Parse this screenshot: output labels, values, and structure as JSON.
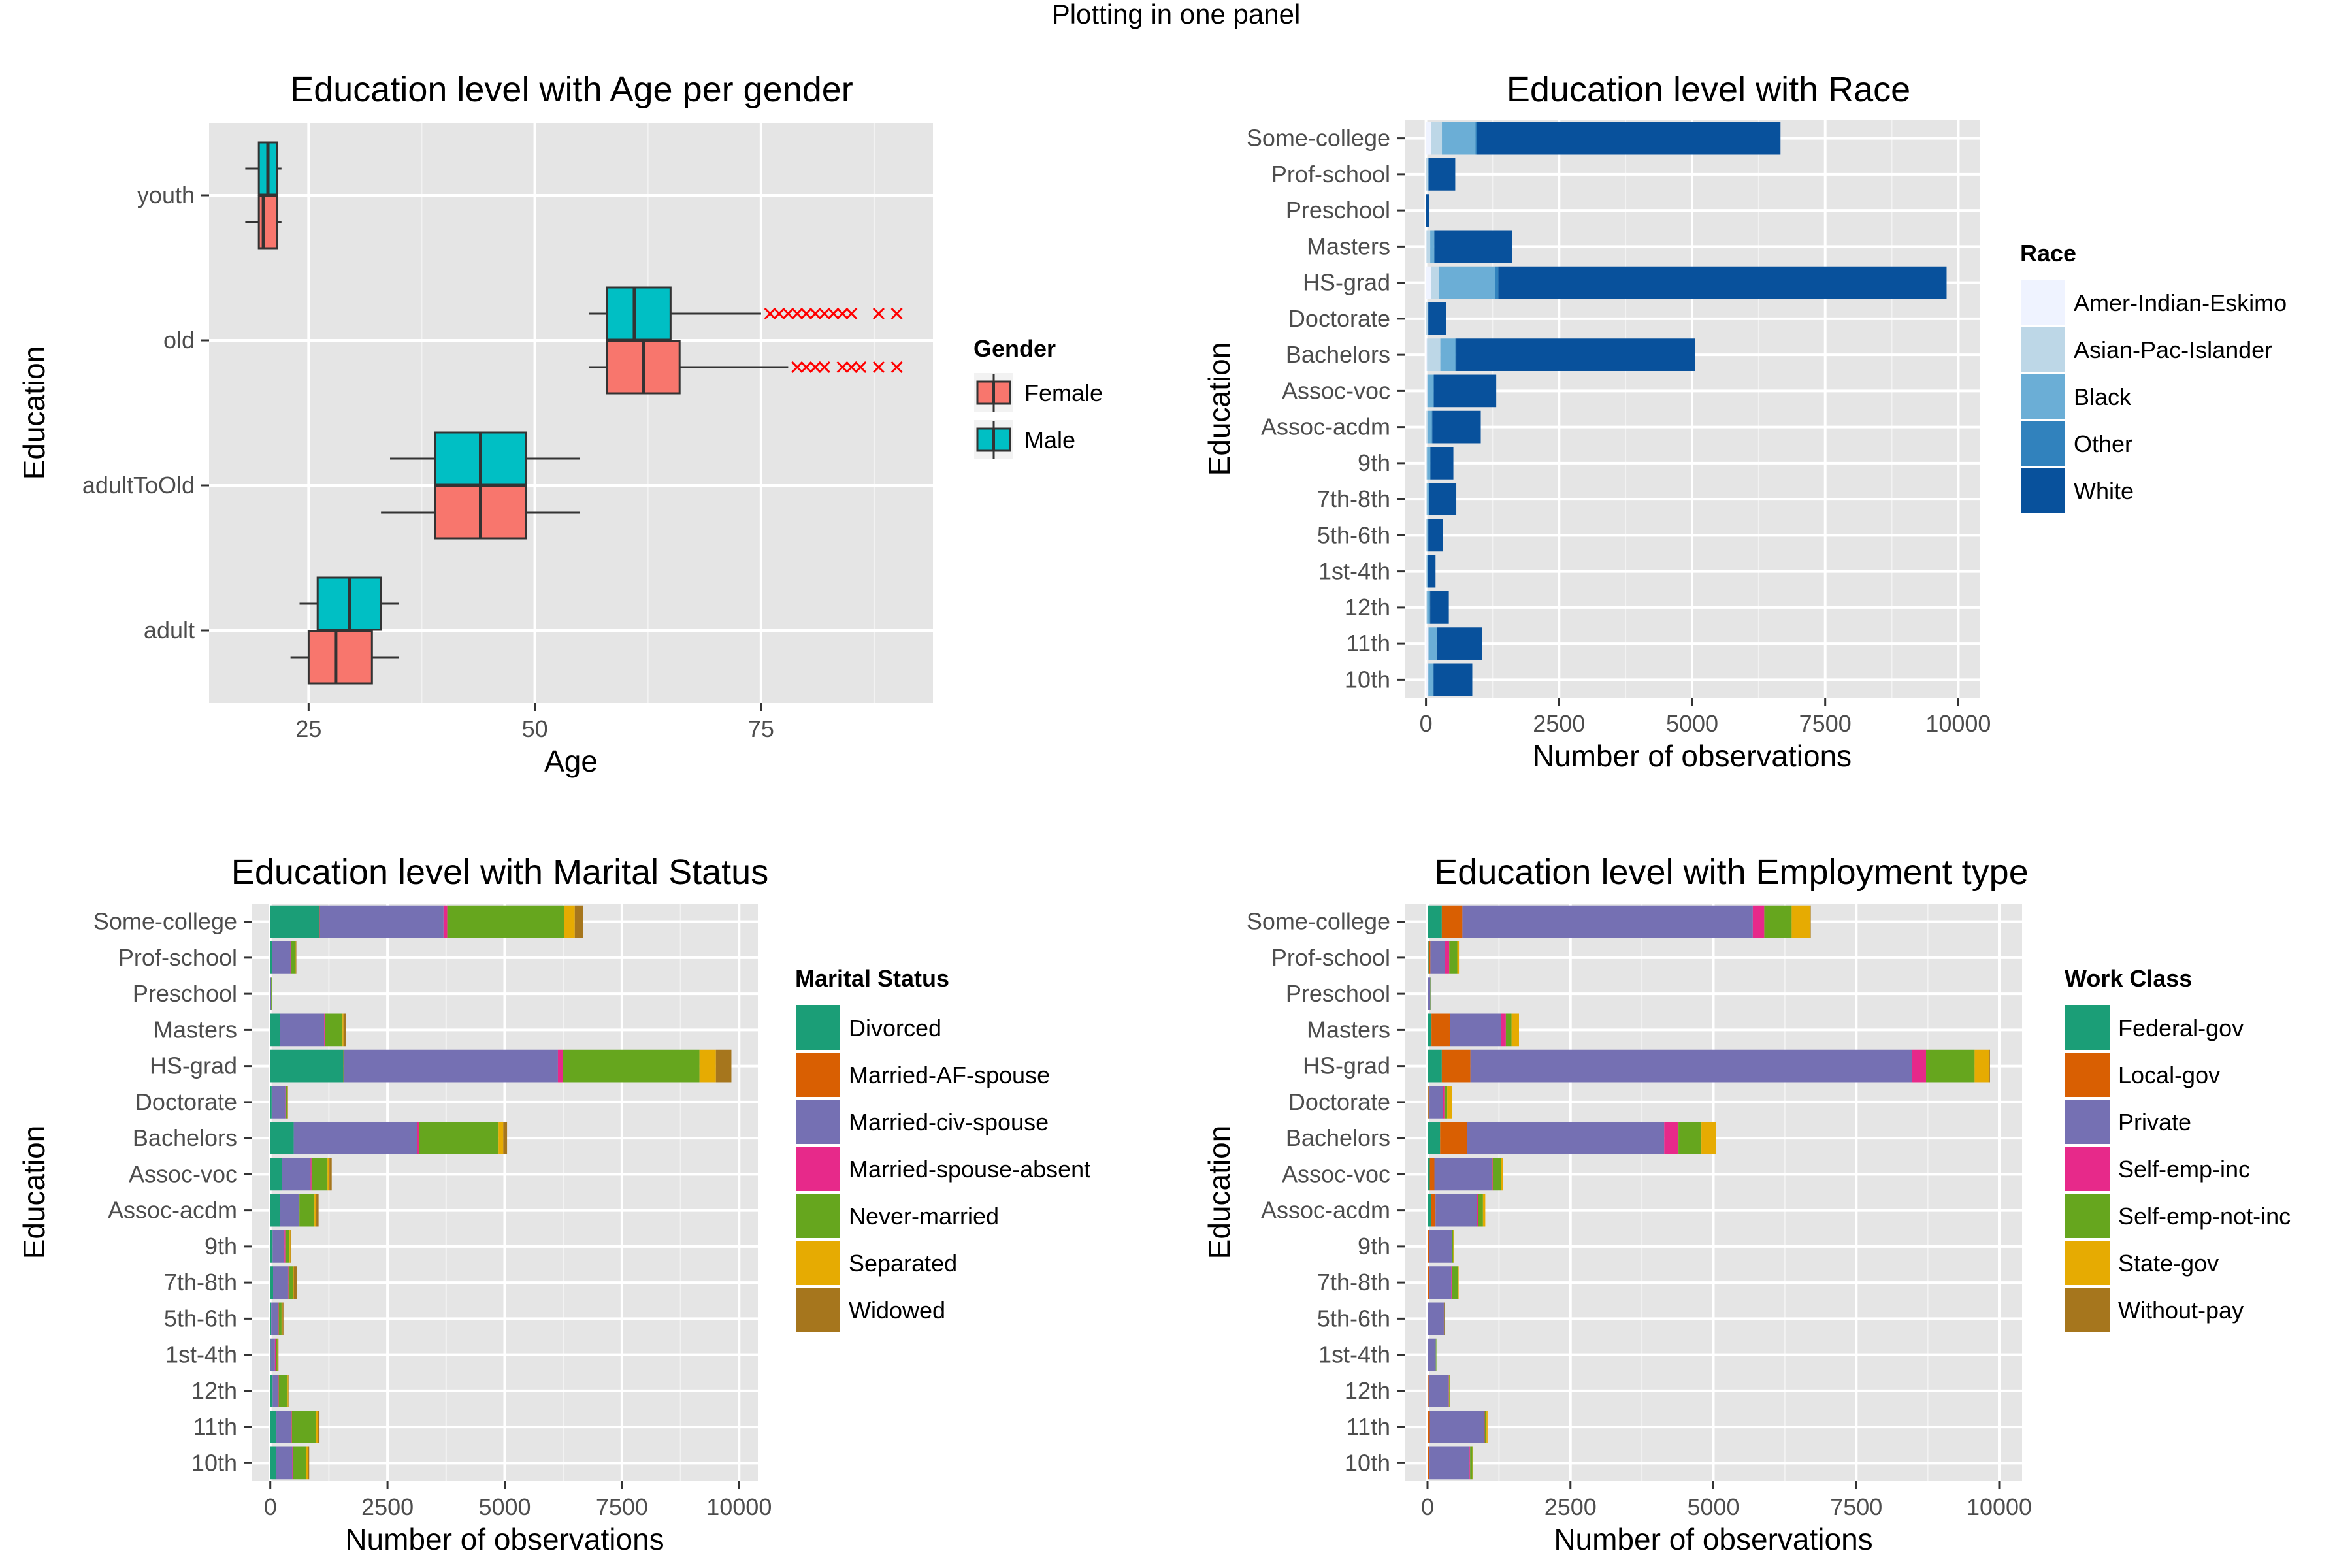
{
  "page_title": "Plotting in one panel",
  "colors": {
    "panel_bg": "#e5e5e5",
    "grid_major": "#ffffff",
    "grid_minor": "#f2f2f2",
    "outlier": "#ff0000",
    "box_female": "#f8766d",
    "box_male": "#00bfc4"
  },
  "chart_data": [
    {
      "type": "boxplot",
      "title": "Education level with Age per gender",
      "xlabel": "Age",
      "ylabel": "Education",
      "xlim": [
        14,
        94
      ],
      "xticks": [
        25,
        50,
        75
      ],
      "categories": [
        "adult",
        "adultToOld",
        "old",
        "youth"
      ],
      "legend": {
        "title": "Gender",
        "position": "right",
        "entries": [
          "Female",
          "Male"
        ],
        "colors": [
          "#f8766d",
          "#00bfc4"
        ]
      },
      "series": [
        {
          "name": "Female",
          "color": "#f8766d",
          "boxes": [
            {
              "category": "adult",
              "min": 23,
              "q1": 25,
              "median": 28,
              "q3": 32,
              "max": 35,
              "outliers": []
            },
            {
              "category": "adultToOld",
              "min": 33,
              "q1": 39,
              "median": 44,
              "q3": 49,
              "max": 55,
              "outliers": []
            },
            {
              "category": "old",
              "min": 56,
              "q1": 58,
              "median": 62,
              "q3": 66,
              "max": 78,
              "outliers": [
                79,
                80,
                81,
                82,
                84,
                85,
                86,
                88,
                90
              ]
            },
            {
              "category": "youth",
              "min": 18,
              "q1": 19.5,
              "median": 20,
              "q3": 21.5,
              "max": 22,
              "outliers": []
            }
          ]
        },
        {
          "name": "Male",
          "color": "#00bfc4",
          "boxes": [
            {
              "category": "adult",
              "min": 24,
              "q1": 26,
              "median": 29.5,
              "q3": 33,
              "max": 35,
              "outliers": []
            },
            {
              "category": "adultToOld",
              "min": 34,
              "q1": 39,
              "median": 44,
              "q3": 49,
              "max": 55,
              "outliers": []
            },
            {
              "category": "old",
              "min": 56,
              "q1": 58,
              "median": 61,
              "q3": 65,
              "max": 75,
              "outliers": [
                76,
                77,
                78,
                79,
                80,
                81,
                82,
                83,
                84,
                85,
                88,
                90
              ]
            },
            {
              "category": "youth",
              "min": 18,
              "q1": 19.5,
              "median": 20.5,
              "q3": 21.5,
              "max": 22,
              "outliers": []
            }
          ]
        }
      ]
    },
    {
      "type": "bar",
      "orientation": "horizontal",
      "stacked": true,
      "title": "Education level with Race",
      "xlabel": "Number of observations",
      "ylabel": "Education",
      "xlim": [
        -400,
        10400
      ],
      "xticks": [
        0,
        2500,
        5000,
        7500,
        10000
      ],
      "categories": [
        "10th",
        "11th",
        "12th",
        "1st-4th",
        "5th-6th",
        "7th-8th",
        "9th",
        "Assoc-acdm",
        "Assoc-voc",
        "Bachelors",
        "Doctorate",
        "HS-grad",
        "Masters",
        "Preschool",
        "Prof-school",
        "Some-college"
      ],
      "legend": {
        "title": "Race",
        "position": "right"
      },
      "series": [
        {
          "name": "Amer-Indian-Eskimo",
          "color": "#eff3ff",
          "values": [
            30,
            30,
            10,
            5,
            5,
            10,
            10,
            10,
            20,
            20,
            5,
            100,
            10,
            0,
            5,
            100
          ]
        },
        {
          "name": "Asian-Pac-Islander",
          "color": "#bdd7e7",
          "values": [
            15,
            20,
            10,
            15,
            15,
            10,
            10,
            20,
            20,
            250,
            25,
            150,
            70,
            5,
            25,
            200
          ]
        },
        {
          "name": "Black",
          "color": "#6baed6",
          "values": [
            90,
            150,
            50,
            15,
            20,
            40,
            60,
            80,
            100,
            280,
            10,
            1050,
            70,
            0,
            15,
            630
          ]
        },
        {
          "name": "Other",
          "color": "#3182bd",
          "values": [
            10,
            10,
            10,
            5,
            5,
            5,
            5,
            10,
            10,
            20,
            5,
            60,
            10,
            0,
            5,
            20
          ]
        },
        {
          "name": "White",
          "color": "#08519c",
          "values": [
            725,
            840,
            350,
            140,
            270,
            505,
            430,
            910,
            1170,
            4480,
            330,
            8420,
            1460,
            50,
            500,
            5710
          ]
        }
      ]
    },
    {
      "type": "bar",
      "orientation": "horizontal",
      "stacked": true,
      "title": "Education level with Marital Status",
      "xlabel": "Number of observations",
      "ylabel": "Education",
      "xlim": [
        -400,
        10400
      ],
      "xticks": [
        0,
        2500,
        5000,
        7500,
        10000
      ],
      "categories": [
        "10th",
        "11th",
        "12th",
        "1st-4th",
        "5th-6th",
        "7th-8th",
        "9th",
        "Assoc-acdm",
        "Assoc-voc",
        "Bachelors",
        "Doctorate",
        "HS-grad",
        "Masters",
        "Preschool",
        "Prof-school",
        "Some-college"
      ],
      "legend": {
        "title": "Marital Status",
        "position": "right"
      },
      "series": [
        {
          "name": "Divorced",
          "color": "#1b9e77",
          "values": [
            120,
            130,
            50,
            10,
            20,
            60,
            50,
            200,
            250,
            500,
            30,
            1560,
            200,
            0,
            40,
            1050
          ]
        },
        {
          "name": "Married-AF-spouse",
          "color": "#d95f02",
          "values": [
            0,
            0,
            0,
            0,
            0,
            0,
            0,
            0,
            0,
            0,
            0,
            5,
            0,
            0,
            0,
            5
          ]
        },
        {
          "name": "Married-civ-spouse",
          "color": "#7570b3",
          "values": [
            350,
            310,
            120,
            90,
            140,
            320,
            250,
            410,
            610,
            2630,
            290,
            4570,
            950,
            20,
            390,
            2640
          ]
        },
        {
          "name": "Married-spouse-absent",
          "color": "#e7298a",
          "values": [
            20,
            20,
            10,
            20,
            20,
            10,
            20,
            10,
            20,
            50,
            5,
            100,
            20,
            0,
            10,
            80
          ]
        },
        {
          "name": "Never-married",
          "color": "#66a61e",
          "values": [
            280,
            520,
            190,
            30,
            60,
            90,
            90,
            320,
            340,
            1690,
            40,
            2920,
            370,
            20,
            100,
            2500
          ]
        },
        {
          "name": "Separated",
          "color": "#e6ab02",
          "values": [
            30,
            40,
            15,
            5,
            20,
            20,
            20,
            40,
            40,
            100,
            5,
            350,
            20,
            0,
            5,
            220
          ]
        },
        {
          "name": "Widowed",
          "color": "#a6761d",
          "values": [
            30,
            30,
            5,
            20,
            20,
            70,
            20,
            50,
            50,
            80,
            5,
            330,
            50,
            0,
            10,
            180
          ]
        }
      ]
    },
    {
      "type": "bar",
      "orientation": "horizontal",
      "stacked": true,
      "title": "Education level with Employment type",
      "xlabel": "Number of observations",
      "ylabel": "Education",
      "xlim": [
        -400,
        10400
      ],
      "xticks": [
        0,
        2500,
        5000,
        7500,
        10000
      ],
      "categories": [
        "10th",
        "11th",
        "12th",
        "1st-4th",
        "5th-6th",
        "7th-8th",
        "9th",
        "Assoc-acdm",
        "Assoc-voc",
        "Bachelors",
        "Doctorate",
        "HS-grad",
        "Masters",
        "Preschool",
        "Prof-school",
        "Some-college"
      ],
      "legend": {
        "title": "Work Class",
        "position": "right"
      },
      "series": [
        {
          "name": "Federal-gov",
          "color": "#1b9e77",
          "values": [
            5,
            10,
            5,
            0,
            0,
            5,
            5,
            60,
            40,
            220,
            15,
            250,
            70,
            0,
            20,
            250
          ]
        },
        {
          "name": "Local-gov",
          "color": "#d95f02",
          "values": [
            30,
            30,
            15,
            5,
            5,
            30,
            20,
            80,
            80,
            470,
            20,
            500,
            320,
            0,
            30,
            360
          ]
        },
        {
          "name": "Private",
          "color": "#7570b3",
          "values": [
            700,
            950,
            350,
            140,
            280,
            380,
            400,
            720,
            1000,
            3450,
            230,
            7720,
            900,
            50,
            250,
            5080
          ]
        },
        {
          "name": "Self-emp-inc",
          "color": "#e7298a",
          "values": [
            10,
            10,
            5,
            0,
            5,
            10,
            5,
            20,
            20,
            250,
            30,
            250,
            80,
            0,
            80,
            200
          ]
        },
        {
          "name": "Self-emp-not-inc",
          "color": "#66a61e",
          "values": [
            40,
            30,
            10,
            10,
            10,
            110,
            20,
            90,
            150,
            400,
            50,
            850,
            100,
            5,
            140,
            480
          ]
        },
        {
          "name": "State-gov",
          "color": "#e6ab02",
          "values": [
            10,
            20,
            10,
            0,
            5,
            10,
            10,
            40,
            30,
            250,
            80,
            260,
            130,
            0,
            30,
            330
          ]
        },
        {
          "name": "Without-pay",
          "color": "#a6761d",
          "values": [
            0,
            0,
            0,
            0,
            0,
            0,
            0,
            0,
            0,
            0,
            0,
            10,
            0,
            0,
            0,
            5
          ]
        }
      ]
    }
  ]
}
